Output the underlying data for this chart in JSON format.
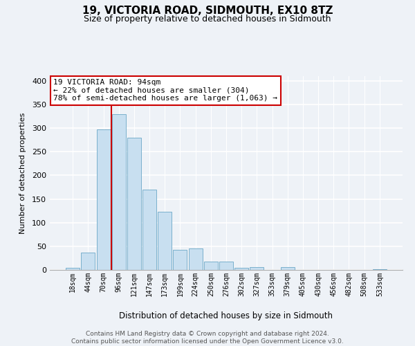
{
  "title": "19, VICTORIA ROAD, SIDMOUTH, EX10 8TZ",
  "subtitle": "Size of property relative to detached houses in Sidmouth",
  "xlabel": "Distribution of detached houses by size in Sidmouth",
  "ylabel": "Number of detached properties",
  "bar_labels": [
    "18sqm",
    "44sqm",
    "70sqm",
    "96sqm",
    "121sqm",
    "147sqm",
    "173sqm",
    "199sqm",
    "224sqm",
    "250sqm",
    "276sqm",
    "302sqm",
    "327sqm",
    "353sqm",
    "379sqm",
    "405sqm",
    "430sqm",
    "456sqm",
    "482sqm",
    "508sqm",
    "533sqm"
  ],
  "bar_values": [
    4,
    37,
    297,
    330,
    280,
    170,
    123,
    42,
    46,
    17,
    17,
    5,
    6,
    0,
    6,
    0,
    0,
    0,
    0,
    0,
    2
  ],
  "bar_color": "#c8dff0",
  "bar_edge_color": "#7ab0cc",
  "property_line_color": "#cc0000",
  "property_line_x": 2.5,
  "annotation_line1": "19 VICTORIA ROAD: 94sqm",
  "annotation_line2": "← 22% of detached houses are smaller (304)",
  "annotation_line3": "78% of semi-detached houses are larger (1,063) →",
  "annotation_box_color": "#ffffff",
  "annotation_box_edge_color": "#cc0000",
  "ylim": [
    0,
    410
  ],
  "yticks": [
    0,
    50,
    100,
    150,
    200,
    250,
    300,
    350,
    400
  ],
  "bg_color": "#eef2f7",
  "grid_color": "#ffffff",
  "footer_line1": "Contains HM Land Registry data © Crown copyright and database right 2024.",
  "footer_line2": "Contains public sector information licensed under the Open Government Licence v3.0."
}
